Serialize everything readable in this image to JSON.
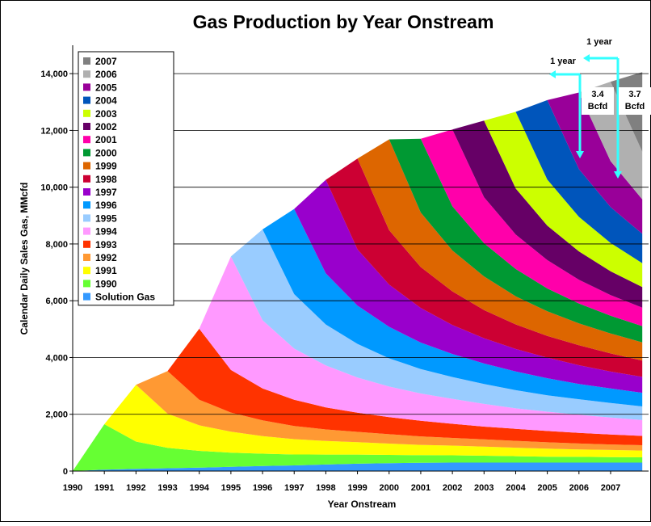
{
  "chart_data": {
    "type": "stacked_area",
    "title": "Gas Production by Year Onstream",
    "xlabel": "Year Onstream",
    "ylabel": "Calendar Daily Sales Gas, MMcfd",
    "x": [
      1990,
      1991,
      1992,
      1993,
      1994,
      1995,
      1996,
      1997,
      1998,
      1999,
      2000,
      2001,
      2002,
      2003,
      2004,
      2005,
      2006,
      2007,
      2008
    ],
    "xlim": [
      1990,
      2008.2
    ],
    "xticks": [
      1990,
      1991,
      1992,
      1993,
      1994,
      1995,
      1996,
      1997,
      1998,
      1999,
      2000,
      2001,
      2002,
      2003,
      2004,
      2005,
      2006,
      2007
    ],
    "ylim": [
      0,
      15000
    ],
    "yticks": [
      0,
      {
        "value": 2000,
        "label": "2,000"
      },
      {
        "value": 4000,
        "label": "4,000"
      },
      {
        "value": 6000,
        "label": "6,000"
      },
      {
        "value": 8000,
        "label": "8,000"
      },
      {
        "value": 10000,
        "label": "10,000"
      },
      {
        "value": 12000,
        "label": "12,000"
      },
      {
        "value": 14000,
        "label": "14,000"
      }
    ],
    "grid": true,
    "legend": "upper left",
    "series": [
      {
        "name": "Solution Gas",
        "color": "#3399ff",
        "values": [
          0,
          50,
          80,
          100,
          120,
          150,
          180,
          200,
          230,
          260,
          280,
          290,
          300,
          300,
          300,
          300,
          300,
          300,
          300
        ]
      },
      {
        "name": "1990",
        "color": "#66ff33",
        "values": [
          0,
          1600,
          960,
          720,
          592,
          496,
          432,
          384,
          352,
          320,
          288,
          272,
          256,
          240,
          224,
          208,
          200,
          192,
          184
        ]
      },
      {
        "name": "1991",
        "color": "#ffff00",
        "values": [
          0,
          0,
          2000,
          1200,
          900,
          740,
          620,
          540,
          480,
          440,
          400,
          360,
          340,
          320,
          300,
          280,
          260,
          250,
          240
        ]
      },
      {
        "name": "1992",
        "color": "#ff9933",
        "values": [
          0,
          0,
          0,
          1500,
          900,
          675,
          555,
          465,
          405,
          360,
          330,
          300,
          270,
          255,
          240,
          225,
          210,
          195,
          188
        ]
      },
      {
        "name": "1993",
        "color": "#ff3300",
        "values": [
          0,
          0,
          0,
          0,
          2500,
          1500,
          1125,
          925,
          775,
          675,
          600,
          550,
          500,
          450,
          425,
          400,
          375,
          350,
          325
        ]
      },
      {
        "name": "1994",
        "color": "#ff99ff",
        "values": [
          0,
          0,
          0,
          0,
          0,
          4000,
          2400,
          1800,
          1480,
          1240,
          1080,
          960,
          880,
          800,
          720,
          680,
          640,
          600,
          560
        ]
      },
      {
        "name": "1995",
        "color": "#99ccff",
        "values": [
          0,
          0,
          0,
          0,
          0,
          0,
          3200,
          1920,
          1440,
          1184,
          992,
          864,
          768,
          704,
          640,
          576,
          544,
          512,
          480
        ]
      },
      {
        "name": "1996",
        "color": "#0099ff",
        "values": [
          0,
          0,
          0,
          0,
          0,
          0,
          0,
          3000,
          1800,
          1350,
          1110,
          930,
          810,
          720,
          660,
          600,
          540,
          510,
          480
        ]
      },
      {
        "name": "1997",
        "color": "#9900cc",
        "values": [
          0,
          0,
          0,
          0,
          0,
          0,
          0,
          0,
          3300,
          1980,
          1485,
          1221,
          1023,
          891,
          792,
          726,
          660,
          594,
          561
        ]
      },
      {
        "name": "1998",
        "color": "#cc0033",
        "values": [
          0,
          0,
          0,
          0,
          0,
          0,
          0,
          0,
          0,
          3200,
          1920,
          1440,
          1184,
          992,
          864,
          768,
          704,
          640,
          576
        ]
      },
      {
        "name": "1999",
        "color": "#dd6600",
        "values": [
          0,
          0,
          0,
          0,
          0,
          0,
          0,
          0,
          0,
          0,
          3200,
          1920,
          1440,
          1184,
          992,
          864,
          768,
          704,
          640
        ]
      },
      {
        "name": "2000",
        "color": "#009933",
        "values": [
          0,
          0,
          0,
          0,
          0,
          0,
          0,
          0,
          0,
          0,
          0,
          2600,
          1560,
          1170,
          962,
          806,
          702,
          624,
          572
        ]
      },
      {
        "name": "2001",
        "color": "#ff00aa",
        "values": [
          0,
          0,
          0,
          0,
          0,
          0,
          0,
          0,
          0,
          0,
          0,
          0,
          2700,
          1620,
          1215,
          999,
          837,
          729,
          648
        ]
      },
      {
        "name": "2002",
        "color": "#660066",
        "values": [
          0,
          0,
          0,
          0,
          0,
          0,
          0,
          0,
          0,
          0,
          0,
          0,
          0,
          2700,
          1620,
          1215,
          999,
          837,
          729
        ]
      },
      {
        "name": "2003",
        "color": "#ccff00",
        "values": [
          0,
          0,
          0,
          0,
          0,
          0,
          0,
          0,
          0,
          0,
          0,
          0,
          0,
          0,
          2700,
          1620,
          1215,
          999,
          837
        ]
      },
      {
        "name": "2004",
        "color": "#0055bb",
        "values": [
          0,
          0,
          0,
          0,
          0,
          0,
          0,
          0,
          0,
          0,
          0,
          0,
          0,
          0,
          0,
          2800,
          1680,
          1260,
          1036
        ]
      },
      {
        "name": "2005",
        "color": "#990099",
        "values": [
          0,
          0,
          0,
          0,
          0,
          0,
          0,
          0,
          0,
          0,
          0,
          0,
          0,
          0,
          0,
          0,
          2700,
          1620,
          1215
        ]
      },
      {
        "name": "2006",
        "color": "#b0b0b0",
        "values": [
          0,
          0,
          0,
          0,
          0,
          0,
          0,
          0,
          0,
          0,
          0,
          0,
          0,
          0,
          0,
          0,
          0,
          2800,
          1680
        ]
      },
      {
        "name": "2007",
        "color": "#808080",
        "values": [
          0,
          0,
          0,
          0,
          0,
          0,
          0,
          0,
          0,
          0,
          0,
          0,
          0,
          0,
          0,
          0,
          0,
          0,
          2800
        ]
      }
    ],
    "annotations": [
      {
        "lines": [
          "1 year"
        ]
      },
      {
        "lines": [
          "1 year"
        ]
      },
      {
        "lines": [
          "3.4",
          "Bcfd"
        ]
      },
      {
        "lines": [
          "3.7",
          "Bcfd"
        ]
      }
    ]
  }
}
